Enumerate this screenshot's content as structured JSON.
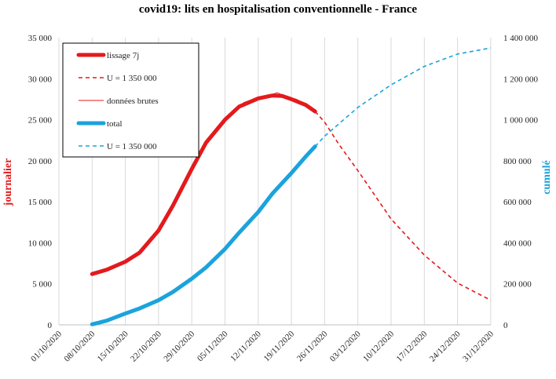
{
  "chart_data": {
    "type": "line",
    "title": "covid19: lits en hospitalisation conventionnelle - France",
    "ylabel_left": "journalier",
    "ylabel_right": "cumulé",
    "ylim_left": [
      0,
      35000
    ],
    "ylim_right": [
      0,
      1400000
    ],
    "y_ticks_left": [
      "0",
      "5 000",
      "10 000",
      "15 000",
      "20 000",
      "25 000",
      "30 000",
      "35 000"
    ],
    "y_ticks_right": [
      "0",
      "200 000",
      "400 000",
      "600 000",
      "800 000",
      "1 000 000",
      "1 200 000",
      "1 400 000"
    ],
    "x_ticks": [
      "01/10/2020",
      "08/10/2020",
      "15/10/2020",
      "22/10/2020",
      "29/10/2020",
      "05/11/2020",
      "12/11/2020",
      "19/11/2020",
      "26/11/2020",
      "03/12/2020",
      "10/12/2020",
      "17/12/2020",
      "24/12/2020",
      "31/12/2020"
    ],
    "grid": "vertical",
    "legend_position": "top-left",
    "series": [
      {
        "name": "lissage 7j",
        "axis": "left",
        "color": "#e31a1c",
        "style": "thick-solid",
        "points": [
          [
            "08/10/2020",
            6200
          ],
          [
            "11/10/2020",
            6700
          ],
          [
            "15/10/2020",
            7700
          ],
          [
            "18/10/2020",
            8800
          ],
          [
            "22/10/2020",
            11500
          ],
          [
            "25/10/2020",
            14500
          ],
          [
            "29/10/2020",
            19000
          ],
          [
            "01/11/2020",
            22200
          ],
          [
            "05/11/2020",
            25000
          ],
          [
            "08/11/2020",
            26600
          ],
          [
            "12/11/2020",
            27600
          ],
          [
            "15/11/2020",
            27950
          ],
          [
            "17/11/2020",
            27900
          ],
          [
            "19/11/2020",
            27500
          ],
          [
            "22/11/2020",
            26800
          ],
          [
            "24/11/2020",
            26000
          ]
        ]
      },
      {
        "name": "U = 1 350 000",
        "axis": "left",
        "color": "#e31a1c",
        "style": "dashed",
        "points": [
          [
            "24/11/2020",
            26000
          ],
          [
            "26/11/2020",
            24700
          ],
          [
            "29/11/2020",
            22000
          ],
          [
            "03/12/2020",
            18800
          ],
          [
            "10/12/2020",
            12900
          ],
          [
            "17/12/2020",
            8500
          ],
          [
            "24/12/2020",
            5100
          ],
          [
            "31/12/2020",
            3000
          ]
        ]
      },
      {
        "name": "données brutes",
        "axis": "left",
        "color": "#e31a1c",
        "style": "thin-solid",
        "points": [
          [
            "08/10/2020",
            6200
          ],
          [
            "12/10/2020",
            6800
          ],
          [
            "15/10/2020",
            7800
          ],
          [
            "19/10/2020",
            9200
          ],
          [
            "22/10/2020",
            11600
          ],
          [
            "26/10/2020",
            15600
          ],
          [
            "29/10/2020",
            19100
          ],
          [
            "02/11/2020",
            23000
          ],
          [
            "05/11/2020",
            25100
          ],
          [
            "09/11/2020",
            27100
          ],
          [
            "12/11/2020",
            27700
          ],
          [
            "14/11/2020",
            27900
          ],
          [
            "16/11/2020",
            28300
          ],
          [
            "18/11/2020",
            27800
          ],
          [
            "20/11/2020",
            27500
          ],
          [
            "22/11/2020",
            26900
          ],
          [
            "24/11/2020",
            26200
          ]
        ]
      },
      {
        "name": "total",
        "axis": "right",
        "color": "#1ba3dc",
        "style": "thick-solid",
        "points": [
          [
            "08/10/2020",
            2500
          ],
          [
            "11/10/2020",
            20000
          ],
          [
            "15/10/2020",
            55000
          ],
          [
            "18/10/2020",
            80000
          ],
          [
            "22/10/2020",
            120000
          ],
          [
            "25/10/2020",
            160000
          ],
          [
            "29/10/2020",
            225000
          ],
          [
            "01/11/2020",
            280000
          ],
          [
            "05/11/2020",
            370000
          ],
          [
            "08/11/2020",
            450000
          ],
          [
            "12/11/2020",
            550000
          ],
          [
            "15/11/2020",
            640000
          ],
          [
            "19/11/2020",
            740000
          ],
          [
            "22/11/2020",
            820000
          ],
          [
            "24/11/2020",
            870000
          ]
        ]
      },
      {
        "name": "U = 1 350 000",
        "axis": "right",
        "color": "#1ba3dc",
        "style": "dashed",
        "points": [
          [
            "24/11/2020",
            870000
          ],
          [
            "26/11/2020",
            920000
          ],
          [
            "29/11/2020",
            980000
          ],
          [
            "03/12/2020",
            1060000
          ],
          [
            "10/12/2020",
            1170000
          ],
          [
            "17/12/2020",
            1260000
          ],
          [
            "24/12/2020",
            1320000
          ],
          [
            "31/12/2020",
            1350000
          ]
        ]
      }
    ]
  }
}
